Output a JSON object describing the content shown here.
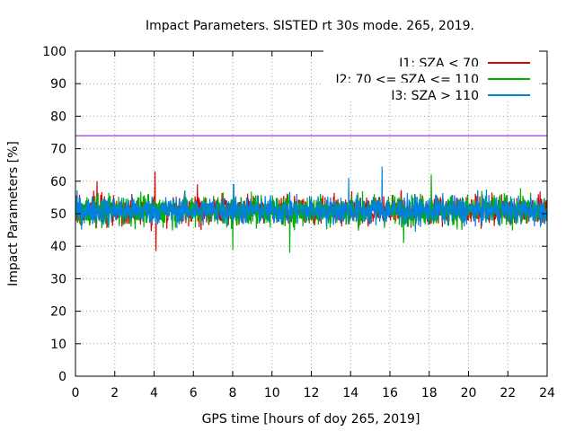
{
  "chart_data": {
    "type": "line",
    "title": "Impact Parameters. SISTED rt 30s mode. 265, 2019.",
    "xlabel": "GPS time [hours of doy 265, 2019]",
    "ylabel": "Impact Parameters [%]",
    "xlim": [
      0,
      24
    ],
    "ylim": [
      0,
      100
    ],
    "x_ticks": [
      0,
      2,
      4,
      6,
      8,
      10,
      12,
      14,
      16,
      18,
      20,
      22,
      24
    ],
    "y_ticks": [
      0,
      10,
      20,
      30,
      40,
      50,
      60,
      70,
      80,
      90,
      100
    ],
    "grid": true,
    "legend_position": "top-right",
    "reference_line": {
      "y": 74,
      "color": "#9400d3"
    },
    "series": [
      {
        "name": "I1: SZA < 70",
        "color": "#e00000",
        "center": 51,
        "spread": 4,
        "spikes": [
          [
            4.05,
            63
          ],
          [
            4.1,
            38.5
          ],
          [
            1.1,
            60
          ],
          [
            6.2,
            59
          ]
        ]
      },
      {
        "name": "I2: 70 <= SZA <= 110",
        "color": "#00b000",
        "center": 51,
        "spread": 4.5,
        "spikes": [
          [
            8.0,
            38.8
          ],
          [
            10.9,
            38
          ],
          [
            18.1,
            62
          ],
          [
            16.7,
            41
          ]
        ]
      },
      {
        "name": "I3: SZA > 110",
        "color": "#0080e0",
        "center": 51,
        "spread": 4,
        "spikes": [
          [
            15.6,
            64.5
          ],
          [
            8.05,
            59
          ],
          [
            13.9,
            61
          ]
        ]
      }
    ]
  }
}
